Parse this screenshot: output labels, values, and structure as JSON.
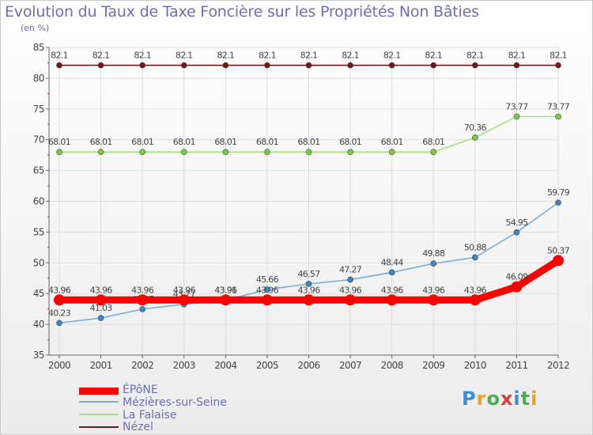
{
  "title": "Evolution du Taux de Taxe Foncière sur les Propriétés Non Bâties",
  "subtitle": "(en %)",
  "logo": {
    "text": "Proxiti",
    "colors": [
      "#3a8fd6",
      "#f0a020",
      "#4cae4c",
      "#e03c3c",
      "#3a8fd6",
      "#4cae4c",
      "#f0a020"
    ]
  },
  "chart_data": {
    "type": "line",
    "title": "Evolution du Taux de Taxe Foncière sur les Propriétés Non Bâties",
    "ylabel": "(en %)",
    "xlabel": "",
    "ylim": [
      35,
      85
    ],
    "yticks": [
      "35",
      "40",
      "45",
      "50",
      "55",
      "60",
      "65",
      "70",
      "75",
      "80",
      "85"
    ],
    "categories": [
      "2000",
      "2001",
      "2002",
      "2003",
      "2004",
      "2005",
      "2006",
      "2007",
      "2008",
      "2009",
      "2010",
      "2011",
      "2012"
    ],
    "series": [
      {
        "name": "Nézel",
        "color": "#6b1a1a",
        "marker": "#6b1a1a",
        "values": [
          82.1,
          82.1,
          82.1,
          82.1,
          82.1,
          82.1,
          82.1,
          82.1,
          82.1,
          82.1,
          82.1,
          82.1,
          82.1
        ],
        "labels": [
          "82.1",
          "82.1",
          "82.1",
          "82.1",
          "82.1",
          "82.1",
          "82.1",
          "82.1",
          "82.1",
          "82.1",
          "82.1",
          "82.1",
          "82.1"
        ]
      },
      {
        "name": "La Falaise",
        "color": "#a8e080",
        "marker": "#7ccb3c",
        "values": [
          68.01,
          68.01,
          68.01,
          68.01,
          68.01,
          68.01,
          68.01,
          68.01,
          68.01,
          68.01,
          70.36,
          73.77,
          73.77
        ],
        "labels": [
          "68.01",
          "68.01",
          "68.01",
          "68.01",
          "68.01",
          "68.01",
          "68.01",
          "68.01",
          "68.01",
          "68.01",
          "70.36",
          "73.77",
          "73.77"
        ]
      },
      {
        "name": "Mézières-sur-Seine",
        "color": "#7aaed6",
        "marker": "#3a86c8",
        "values": [
          40.23,
          41.03,
          42.47,
          43.27,
          43.91,
          45.66,
          46.57,
          47.27,
          48.44,
          49.88,
          50.88,
          54.95,
          59.79
        ],
        "labels": [
          "40.23",
          "41.03",
          "42.47",
          "43.27",
          "43.91",
          "45.66",
          "46.57",
          "47.27",
          "48.44",
          "49.88",
          "50.88",
          "54.95",
          "59.79"
        ]
      },
      {
        "name": "ÉPôNE",
        "color": "#ff0000",
        "marker": "#ff0000",
        "values": [
          43.96,
          43.96,
          43.96,
          43.96,
          43.96,
          43.96,
          43.96,
          43.96,
          43.96,
          43.96,
          43.96,
          46.09,
          50.37
        ],
        "labels": [
          "43.96",
          "43.96",
          "43.96",
          "43.96",
          "43.96",
          "43.96",
          "43.96",
          "43.96",
          "43.96",
          "43.96",
          "43.96",
          "46.09",
          "50.37"
        ]
      }
    ],
    "legend": [
      {
        "name": "ÉPôNE",
        "color": "#ff0000"
      },
      {
        "name": "Mézières-sur-Seine",
        "color": "#7aaed6"
      },
      {
        "name": "La Falaise",
        "color": "#a8e080"
      },
      {
        "name": "Nézel",
        "color": "#6b1a1a"
      }
    ]
  }
}
